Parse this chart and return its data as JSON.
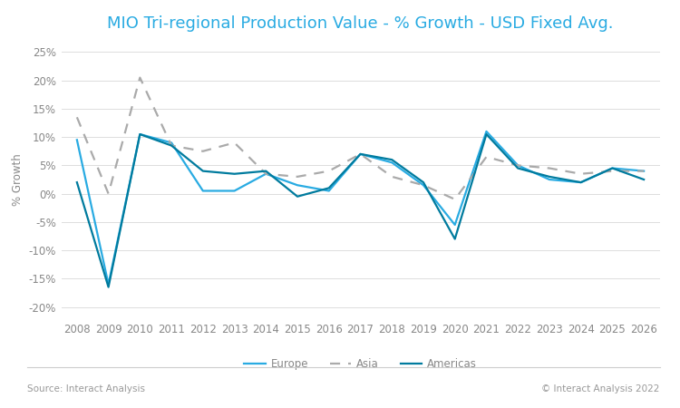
{
  "title": "MIO Tri-regional Production Value - % Growth - USD Fixed Avg.",
  "title_color": "#29ABE2",
  "xlabel": "",
  "ylabel": "% Growth",
  "background_color": "#FFFFFF",
  "grid_color": "#DDDDDD",
  "footer_left": "Source: Interact Analysis",
  "footer_right": "© Interact Analysis 2022",
  "years": [
    2008,
    2009,
    2010,
    2011,
    2012,
    2013,
    2014,
    2015,
    2016,
    2017,
    2018,
    2019,
    2020,
    2021,
    2022,
    2023,
    2024,
    2025,
    2026
  ],
  "europe": [
    9.5,
    -16.0,
    10.5,
    9.0,
    0.5,
    0.5,
    3.5,
    1.5,
    0.5,
    7.0,
    5.5,
    1.5,
    -5.5,
    11.0,
    5.0,
    2.5,
    2.0,
    4.5,
    4.0
  ],
  "asia": [
    13.5,
    0.0,
    20.5,
    8.5,
    7.5,
    9.0,
    3.5,
    3.0,
    4.0,
    7.0,
    3.0,
    1.5,
    -1.0,
    6.5,
    5.0,
    4.5,
    3.5,
    4.0,
    4.0
  ],
  "americas": [
    2.0,
    -16.5,
    10.5,
    8.5,
    4.0,
    3.5,
    4.0,
    -0.5,
    1.0,
    7.0,
    6.0,
    2.0,
    -8.0,
    10.5,
    4.5,
    3.0,
    2.0,
    4.5,
    2.5
  ],
  "europe_color": "#29ABE2",
  "asia_color": "#AAAAAA",
  "americas_color": "#007B9E",
  "linewidth": 1.6,
  "ylim": [
    -22,
    27
  ],
  "yticks": [
    -20,
    -15,
    -10,
    -5,
    0,
    5,
    10,
    15,
    20,
    25
  ],
  "legend_labels": [
    "Europe",
    "Asia",
    "Americas"
  ],
  "title_fontsize": 13,
  "axis_fontsize": 8.5,
  "legend_fontsize": 8.5,
  "footer_fontsize": 7.5,
  "tick_color": "#888888",
  "label_color": "#888888"
}
